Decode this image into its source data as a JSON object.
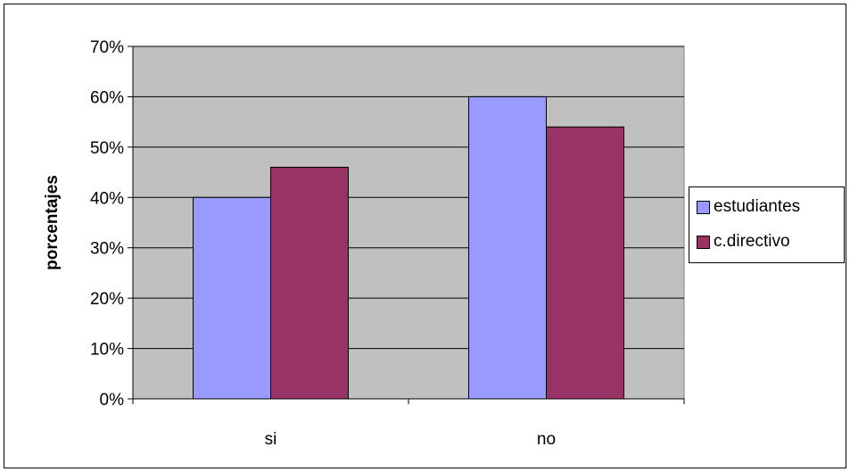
{
  "chart_data": {
    "type": "bar",
    "categories": [
      "si",
      "no"
    ],
    "series": [
      {
        "name": "estudiantes",
        "values": [
          40,
          60
        ],
        "color": "#9999ff"
      },
      {
        "name": "c.directivo",
        "values": [
          46,
          54
        ],
        "color": "#993366"
      }
    ],
    "xlabel": "",
    "ylabel": "porcentajes",
    "ylim": [
      0,
      70
    ],
    "y_ticks": [
      "0%",
      "10%",
      "20%",
      "30%",
      "40%",
      "50%",
      "60%",
      "70%"
    ],
    "plot_background": "#c0c0c0",
    "grid": true,
    "legend_position": "right"
  }
}
